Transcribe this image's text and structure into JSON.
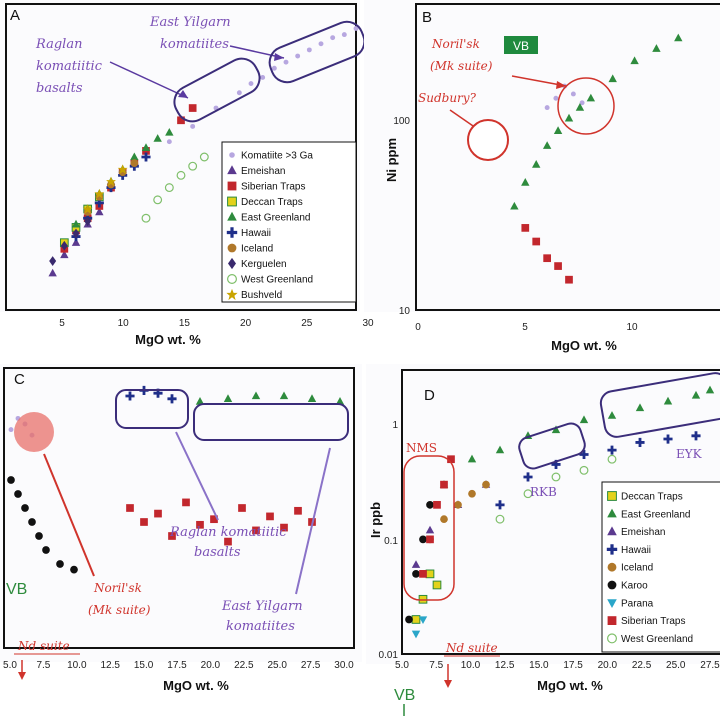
{
  "colors": {
    "komatiite": "#b7a7e0",
    "emeishan": "#5b3a8f",
    "siberian": "#c2272d",
    "deccan": "#e3d21b",
    "east_greenland": "#2e8b3d",
    "hawaii": "#1f2f8a",
    "iceland": "#b0782a",
    "karoo": "#111111",
    "kerguelen": "#3a2a6e",
    "west_greenland": "#7fbf6a",
    "bushveld": "#c9a400",
    "parana": "#2aa6c9",
    "annot_purple": "#7a4fb5",
    "annot_red": "#d0342c",
    "outline": "#3b2d7a"
  },
  "panels": [
    {
      "letter": "A",
      "xlabel": "MgO wt. %",
      "xticks": [
        "5",
        "10",
        "15",
        "20",
        "25",
        "30"
      ],
      "annotations": [
        "Raglan",
        "komatiitic",
        "basalts",
        "East Yilgarn",
        "komatiites"
      ],
      "legend": [
        "Komatiite >3 Ga",
        "Emeishan",
        "Siberian Traps",
        "Deccan Traps",
        "East Greenland",
        "Hawaii",
        "Iceland",
        "Kerguelen",
        "West Greenland",
        "Bushveld"
      ]
    },
    {
      "letter": "B",
      "xlabel": "MgO wt. %",
      "ylabel": "Ni ppm",
      "xticks": [
        "0",
        "5",
        "10"
      ],
      "yticks": [
        "100",
        "10"
      ],
      "annotations": [
        "Noril'sk",
        "(Mk suite)",
        "Sudbury?"
      ],
      "badge": "VB"
    },
    {
      "letter": "C",
      "xlabel": "MgO wt. %",
      "xticks": [
        "5.0",
        "7.5",
        "10.0",
        "12.5",
        "15.0",
        "17.5",
        "20.0",
        "22.5",
        "25.0",
        "27.5",
        "30.0"
      ],
      "annotations": [
        "Raglan komatiitic",
        "basalts",
        "East Yilgarn",
        "komatiites",
        "Noril'sk",
        "(Mk suite)",
        "Nd suite",
        "VB"
      ]
    },
    {
      "letter": "D",
      "xlabel": "MgO wt. %",
      "ylabel": "Ir ppb",
      "xticks": [
        "5.0",
        "7.5",
        "10.0",
        "12.5",
        "15.0",
        "17.5",
        "20.0",
        "22.5",
        "25.0",
        "27.5"
      ],
      "yticks": [
        "1",
        "0.1",
        "0.01"
      ],
      "annotations": [
        "NMS",
        "RKB",
        "EYK",
        "Nd suite",
        "VB"
      ],
      "legend": [
        "Deccan Traps",
        "East Greenland",
        "Emeishan",
        "Hawaii",
        "Iceland",
        "Karoo",
        "Parana",
        "Siberian Traps",
        "West Greenland"
      ]
    }
  ],
  "chart_data": [
    {
      "type": "scatter",
      "title": "",
      "xlabel": "MgO wt. %",
      "ylabel": "",
      "xlim": [
        0,
        30
      ],
      "grid": false,
      "legend_position": "bottom-right",
      "series": [
        {
          "name": "Komatiite >3 Ga",
          "x": [
            14,
            16,
            18,
            20,
            21,
            22,
            23,
            24,
            25,
            26,
            27,
            28,
            29,
            30
          ],
          "y": [
            0.55,
            0.6,
            0.66,
            0.71,
            0.74,
            0.76,
            0.79,
            0.81,
            0.83,
            0.85,
            0.87,
            0.89,
            0.9,
            0.92
          ]
        },
        {
          "name": "Emeishan",
          "x": [
            4,
            5,
            6,
            7,
            8
          ],
          "y": [
            0.12,
            0.18,
            0.22,
            0.28,
            0.32
          ]
        },
        {
          "name": "Siberian Traps",
          "x": [
            5,
            6,
            7,
            8,
            9,
            10,
            11,
            12,
            15,
            16
          ],
          "y": [
            0.2,
            0.26,
            0.3,
            0.34,
            0.4,
            0.45,
            0.48,
            0.52,
            0.62,
            0.66
          ]
        },
        {
          "name": "Deccan Traps",
          "x": [
            5,
            6,
            7,
            8
          ],
          "y": [
            0.22,
            0.27,
            0.33,
            0.37
          ]
        },
        {
          "name": "East Greenland",
          "x": [
            6,
            7,
            8,
            9,
            10,
            11,
            12,
            13,
            14
          ],
          "y": [
            0.28,
            0.33,
            0.38,
            0.42,
            0.46,
            0.5,
            0.53,
            0.56,
            0.58
          ]
        },
        {
          "name": "Hawaii",
          "x": [
            6,
            7,
            8,
            9,
            10,
            11,
            12
          ],
          "y": [
            0.24,
            0.3,
            0.35,
            0.4,
            0.44,
            0.47,
            0.5
          ]
        },
        {
          "name": "Iceland",
          "x": [
            7,
            8,
            9,
            10,
            11
          ],
          "y": [
            0.32,
            0.37,
            0.41,
            0.45,
            0.48
          ]
        },
        {
          "name": "Kerguelen",
          "x": [
            4,
            5,
            6,
            7
          ],
          "y": [
            0.16,
            0.21,
            0.25,
            0.29
          ]
        },
        {
          "name": "West Greenland",
          "x": [
            12,
            13,
            14,
            15,
            16,
            17
          ],
          "y": [
            0.3,
            0.36,
            0.4,
            0.44,
            0.47,
            0.5
          ]
        },
        {
          "name": "Bushveld",
          "x": [
            7,
            8,
            9,
            10
          ],
          "y": [
            0.33,
            0.38,
            0.42,
            0.46
          ]
        }
      ]
    },
    {
      "type": "scatter",
      "title": "",
      "xlabel": "MgO wt. %",
      "ylabel": "Ni ppm",
      "xlim": [
        0,
        14
      ],
      "ylim": [
        10,
        600
      ],
      "yscale": "log",
      "grid": false,
      "series": [
        {
          "name": "Noril'sk (Mk suite)",
          "x": [
            6.0,
            6.4,
            6.8,
            7.2,
            7.6
          ],
          "y": [
            150,
            170,
            200,
            180,
            160
          ]
        },
        {
          "name": "Sudbury?",
          "x": [
            3.5
          ],
          "y": [
            85
          ]
        },
        {
          "x": [
            4.5,
            5.0,
            5.5,
            6.0,
            6.5,
            7.0,
            7.5,
            8.0,
            9.0,
            10.0,
            11.0,
            12.0
          ],
          "y": [
            40,
            55,
            70,
            90,
            110,
            130,
            150,
            170,
            220,
            280,
            330,
            380
          ]
        },
        {
          "x": [
            5.0,
            5.5,
            6.0,
            6.5,
            7.0
          ],
          "y": [
            30,
            25,
            20,
            18,
            15
          ]
        }
      ]
    },
    {
      "type": "scatter",
      "title": "",
      "xlabel": "MgO wt. %",
      "ylabel": "",
      "xlim": [
        5,
        30
      ],
      "grid": false,
      "series": [
        {
          "name": "Noril'sk (Mk suite)",
          "x": [
            5.5,
            6.0,
            6.5,
            7.0
          ],
          "y": [
            0.78,
            0.82,
            0.8,
            0.76
          ]
        },
        {
          "name": "Raglan komatiitic basalts",
          "x": [
            14,
            15,
            16,
            17
          ],
          "y": [
            0.9,
            0.92,
            0.91,
            0.89
          ]
        },
        {
          "name": "East Yilgarn komatiites",
          "x": [
            19,
            21,
            23,
            25,
            27,
            29
          ],
          "y": [
            0.88,
            0.89,
            0.9,
            0.9,
            0.89,
            0.88
          ]
        },
        {
          "x": [
            14,
            15,
            16,
            17,
            18,
            19,
            20,
            21,
            22,
            23,
            24,
            25,
            26,
            27
          ],
          "y": [
            0.5,
            0.45,
            0.48,
            0.4,
            0.52,
            0.44,
            0.46,
            0.38,
            0.5,
            0.42,
            0.47,
            0.43,
            0.49,
            0.45
          ]
        },
        {
          "x": [
            5.5,
            6.0,
            6.5,
            7.0,
            7.5,
            8.0,
            9.0,
            10.0
          ],
          "y": [
            0.6,
            0.55,
            0.5,
            0.45,
            0.4,
            0.35,
            0.3,
            0.28
          ]
        }
      ]
    },
    {
      "type": "scatter",
      "title": "",
      "xlabel": "MgO wt. %",
      "ylabel": "Ir ppb",
      "xlim": [
        5,
        28
      ],
      "ylim": [
        0.01,
        3
      ],
      "yscale": "log",
      "grid": false,
      "legend_position": "bottom-right",
      "series": [
        {
          "name": "Deccan Traps",
          "x": [
            6.0,
            6.5,
            7.0,
            7.5
          ],
          "y": [
            0.02,
            0.03,
            0.05,
            0.04
          ]
        },
        {
          "name": "East Greenland",
          "x": [
            8,
            10,
            12,
            14,
            16,
            18,
            20,
            22,
            24,
            26,
            27
          ],
          "y": [
            0.3,
            0.5,
            0.6,
            0.8,
            0.9,
            1.1,
            1.2,
            1.4,
            1.6,
            1.8,
            2.0
          ]
        },
        {
          "name": "Emeishan",
          "x": [
            6,
            7,
            9,
            11
          ],
          "y": [
            0.06,
            0.12,
            0.2,
            0.3
          ]
        },
        {
          "name": "Hawaii",
          "x": [
            12,
            14,
            16,
            18,
            20,
            22,
            24,
            26
          ],
          "y": [
            0.2,
            0.35,
            0.45,
            0.55,
            0.6,
            0.7,
            0.75,
            0.8
          ]
        },
        {
          "name": "Iceland",
          "x": [
            7,
            8,
            9,
            10,
            11
          ],
          "y": [
            0.1,
            0.15,
            0.2,
            0.25,
            0.3
          ]
        },
        {
          "name": "Karoo",
          "x": [
            5.5,
            6.0,
            6.5,
            7.0
          ],
          "y": [
            0.02,
            0.05,
            0.1,
            0.2
          ]
        },
        {
          "name": "Parana",
          "x": [
            6.0,
            6.5
          ],
          "y": [
            0.015,
            0.02
          ]
        },
        {
          "name": "Siberian Traps",
          "x": [
            6.5,
            7.0,
            7.5,
            8.0,
            8.5
          ],
          "y": [
            0.05,
            0.1,
            0.2,
            0.3,
            0.5
          ]
        },
        {
          "name": "West Greenland",
          "x": [
            12,
            14,
            16,
            18,
            20
          ],
          "y": [
            0.15,
            0.25,
            0.35,
            0.4,
            0.5
          ]
        }
      ]
    }
  ]
}
